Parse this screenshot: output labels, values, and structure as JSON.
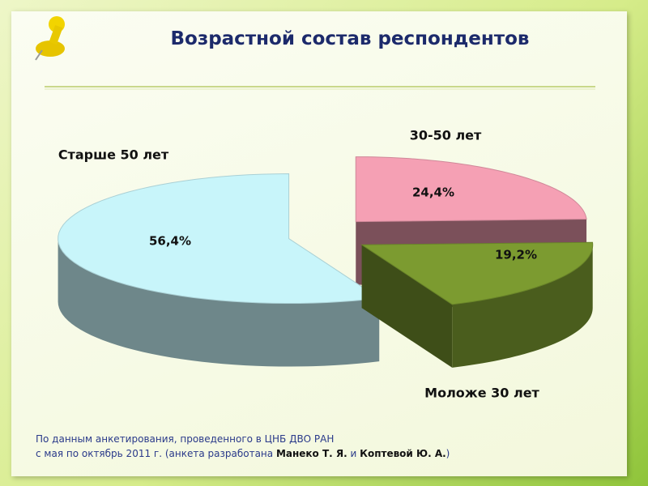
{
  "chart_data": {
    "type": "pie",
    "title": "Возрастной состав респондентов",
    "categories": [
      "30-50 лет",
      "Моложе 30 лет",
      "Старше 50 лет"
    ],
    "values": [
      24.4,
      19.2,
      56.4
    ],
    "value_labels": [
      "24,4%",
      "19,2%",
      "56,4%"
    ],
    "colors": [
      "#f5a0b4",
      "#7c9b30",
      "#c8f5fa"
    ]
  },
  "source": [
    "По данным анкетирования, проведенного в ЦНБ ДВО РАН",
    "с мая по октябрь 2011 г. (анкета разработана ",
    "Манеко Т. Я.",
    " и ",
    "Коптевой Ю. А.",
    ")"
  ]
}
